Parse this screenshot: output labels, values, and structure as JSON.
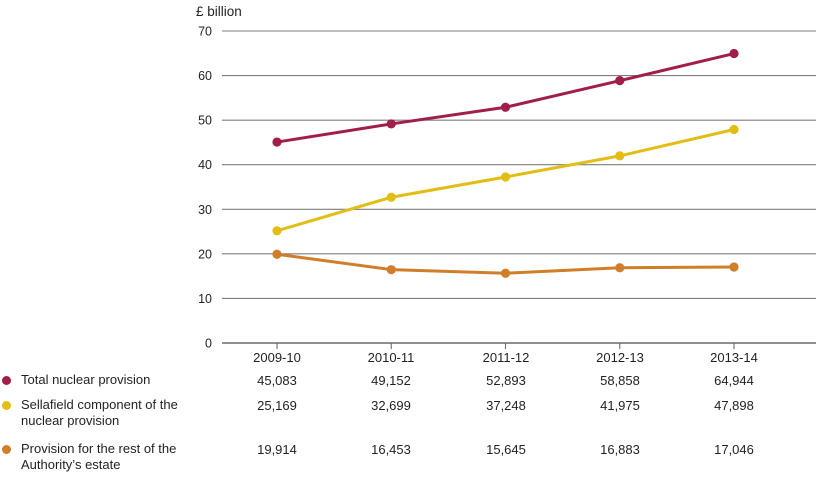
{
  "colors": {
    "grid": "#7d7d7d",
    "axis": "#6a6a6a",
    "text": "#231f20",
    "background": "#ffffff"
  },
  "chart_data": {
    "type": "line",
    "ylabel": "£ billion",
    "categories": [
      "2009-10",
      "2010-11",
      "2011-12",
      "2012-13",
      "2013-14"
    ],
    "series": [
      {
        "name": "Total nuclear provision",
        "color": "#a21e4a",
        "values": [
          45083,
          49152,
          52893,
          58858,
          64944
        ]
      },
      {
        "name": "Sellafield component of the nuclear provision",
        "color": "#e3bd14",
        "values": [
          25169,
          32699,
          37248,
          41975,
          47898
        ]
      },
      {
        "name": "Provision for the rest of the Authority’s estate",
        "color": "#d07e2a",
        "values": [
          19914,
          16453,
          15645,
          16883,
          17046
        ]
      }
    ],
    "value_unit": "£ million",
    "plot_divisor": 1000,
    "ylim": [
      0,
      70
    ],
    "yticks": [
      0,
      10,
      20,
      30,
      40,
      50,
      60,
      70
    ],
    "grid": true,
    "legend_position": "bottom-left"
  },
  "table": {
    "rows": [
      {
        "label_lines": [
          "Total nuclear provision",
          ""
        ],
        "values": [
          "45,083",
          "49,152",
          "52,893",
          "58,858",
          "64,944"
        ]
      },
      {
        "label_lines": [
          "Sellafield component of the",
          "nuclear provision"
        ],
        "values": [
          "25,169",
          "32,699",
          "37,248",
          "41,975",
          "47,898"
        ]
      },
      {
        "label_lines": [
          "Provision for the rest of the",
          "Authority’s estate"
        ],
        "values": [
          "19,914",
          "16,453",
          "15,645",
          "16,883",
          "17,046"
        ]
      }
    ]
  }
}
